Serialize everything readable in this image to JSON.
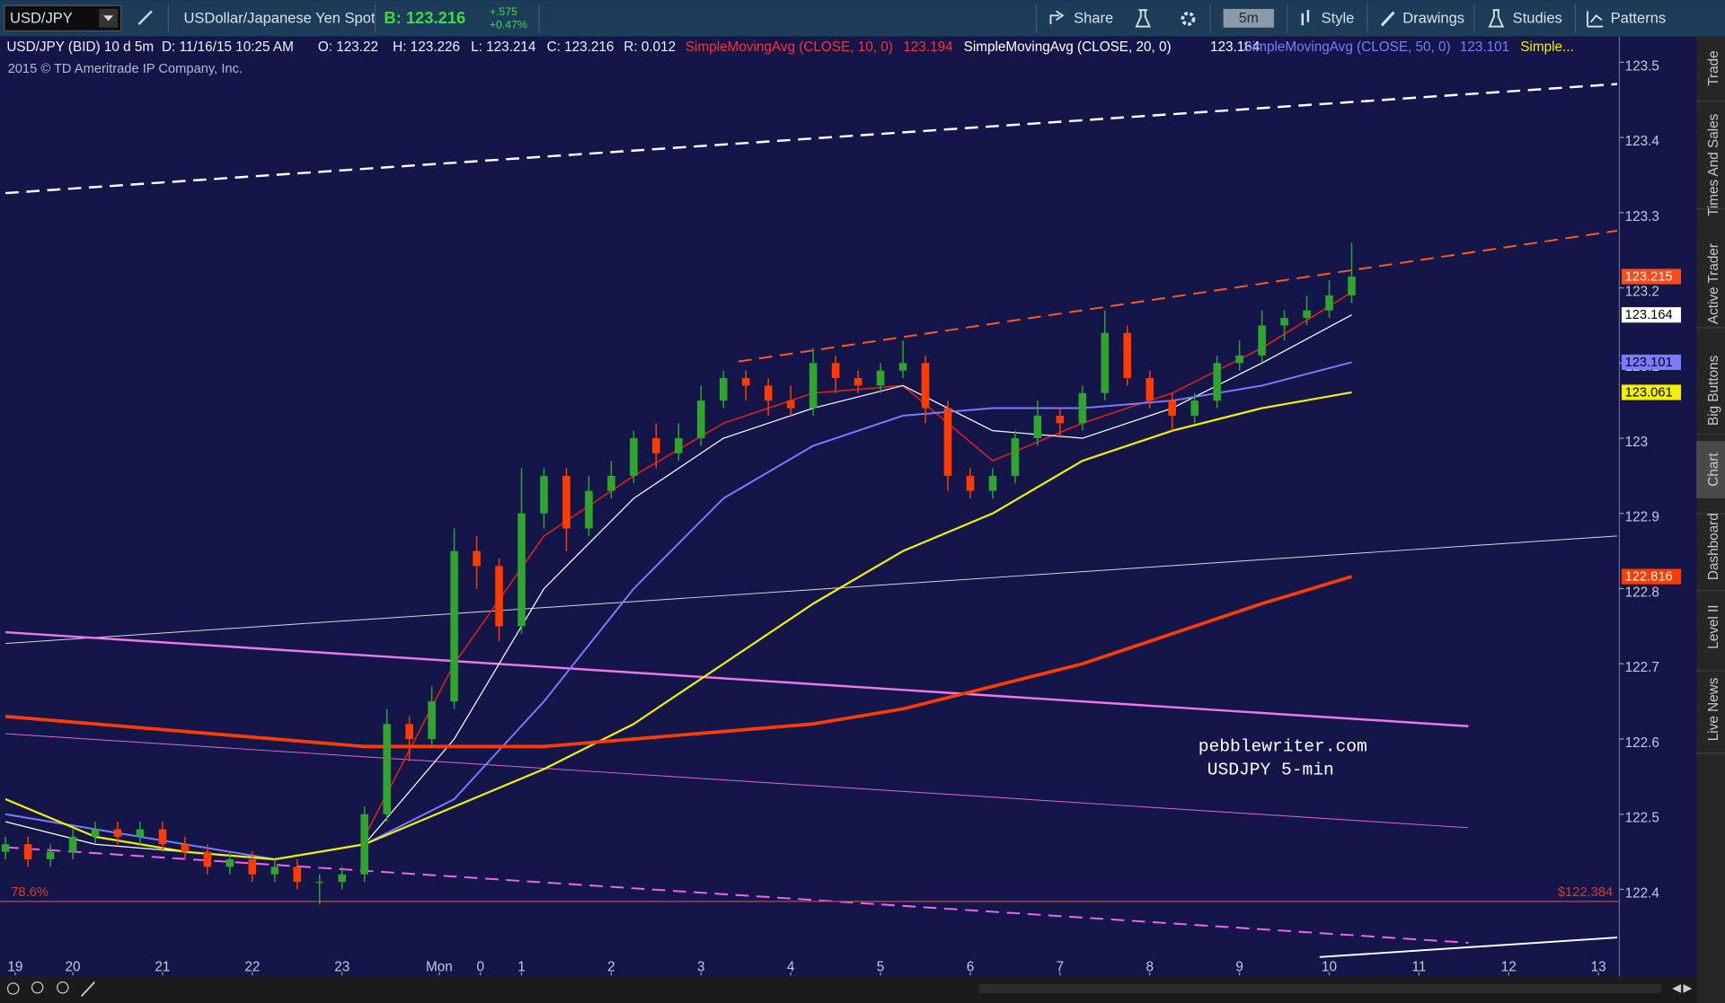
{
  "toolbar": {
    "symbol": "USD/JPY",
    "description": "USDollar/Japanese Yen Spot",
    "bid": "B: 123.216",
    "change": "+.575",
    "change_percent": "+0.47%",
    "buttons": [
      "Share",
      "5m",
      "Style",
      "Drawings",
      "Studies",
      "Patterns"
    ]
  },
  "info_bar": {
    "symbol": "USD/JPY (BID) 10 d 5m",
    "date": "D: 11/16/15 10:25 AM",
    "open": "O: 123.22",
    "high": "H: 123.226",
    "low": "L: 123.214",
    "close": "C: 123.216",
    "range": "R: 0.012",
    "copyright": "2015 © TD Ameritrade IP Company, Inc."
  },
  "sidebar": [
    "Trade",
    "Times And Sales",
    "Active Trader",
    "Big Buttons",
    "Chart",
    "Dashboard",
    "Level II",
    "Live News"
  ],
  "chart_data": {
    "type": "candlestick",
    "xlim": [
      0,
      215.5
    ],
    "ylim": [
      122.29,
      123.53
    ],
    "xticks": [
      {
        "value": 1.3,
        "label": "19"
      },
      {
        "value": 9,
        "label": "20"
      },
      {
        "value": 21,
        "label": "21"
      },
      {
        "value": 33,
        "label": "22"
      },
      {
        "value": 45,
        "label": "23"
      },
      {
        "value": 58,
        "label": "Mon"
      },
      {
        "value": 63.5,
        "label": "0"
      },
      {
        "value": 69,
        "label": "1"
      },
      {
        "value": 81,
        "label": "2"
      },
      {
        "value": 93,
        "label": "3"
      },
      {
        "value": 105,
        "label": "4"
      },
      {
        "value": 117,
        "label": "5"
      },
      {
        "value": 129,
        "label": "6"
      },
      {
        "value": 141,
        "label": "7"
      },
      {
        "value": 153,
        "label": "8"
      },
      {
        "value": 165,
        "label": "9"
      },
      {
        "value": 177,
        "label": "10"
      },
      {
        "value": 189,
        "label": "11"
      },
      {
        "value": 201,
        "label": "12"
      },
      {
        "value": 213,
        "label": "13"
      }
    ],
    "yticks": [
      122.4,
      122.5,
      122.6,
      122.7,
      122.8,
      122.9,
      123,
      123.1,
      123.2,
      123.3,
      123.4,
      123.5
    ],
    "grid": false,
    "up_color": "#2fa52f",
    "down_color": "#ff3c00",
    "x": [
      0,
      3,
      6,
      9,
      12,
      15,
      18,
      21,
      24,
      27,
      30,
      33,
      36,
      39,
      42,
      45,
      48,
      51,
      54,
      57,
      60,
      63,
      66,
      69,
      72,
      75,
      78,
      81,
      84,
      87,
      90,
      93,
      96,
      99,
      102,
      105,
      108,
      111,
      114,
      117,
      120,
      123,
      126,
      129,
      132,
      135,
      138,
      141,
      144,
      147,
      150,
      153,
      156,
      159,
      162,
      165,
      168,
      171,
      174,
      177,
      180
    ],
    "open": [
      122.45,
      122.46,
      122.44,
      122.45,
      122.47,
      122.48,
      122.47,
      122.48,
      122.46,
      122.45,
      122.43,
      122.44,
      122.42,
      122.43,
      122.41,
      122.41,
      122.42,
      122.5,
      122.62,
      122.6,
      122.65,
      122.85,
      122.83,
      122.75,
      122.9,
      122.95,
      122.88,
      122.93,
      122.95,
      123.0,
      122.98,
      123.0,
      123.05,
      123.08,
      123.07,
      123.05,
      123.04,
      123.1,
      123.08,
      123.07,
      123.09,
      123.1,
      123.04,
      122.95,
      122.93,
      122.95,
      123.0,
      123.03,
      123.02,
      123.06,
      123.14,
      123.08,
      123.05,
      123.03,
      123.05,
      123.1,
      123.11,
      123.15,
      123.16,
      123.17,
      123.19
    ],
    "high": [
      122.47,
      122.47,
      122.46,
      122.48,
      122.49,
      122.49,
      122.49,
      122.49,
      122.47,
      122.46,
      122.45,
      122.45,
      122.44,
      122.44,
      122.42,
      122.43,
      122.51,
      122.64,
      122.63,
      122.67,
      122.88,
      122.87,
      122.84,
      122.96,
      122.96,
      122.96,
      122.95,
      122.97,
      123.01,
      123.02,
      123.02,
      123.07,
      123.09,
      123.09,
      123.08,
      123.07,
      123.12,
      123.11,
      123.09,
      123.1,
      123.13,
      123.11,
      123.05,
      122.96,
      122.96,
      123.01,
      123.05,
      123.04,
      123.07,
      123.17,
      123.15,
      123.09,
      123.06,
      123.06,
      123.11,
      123.13,
      123.17,
      123.17,
      123.19,
      123.21,
      123.26
    ],
    "low": [
      122.44,
      122.43,
      122.43,
      122.44,
      122.46,
      122.46,
      122.46,
      122.45,
      122.44,
      122.42,
      122.42,
      122.41,
      122.41,
      122.4,
      122.38,
      122.4,
      122.41,
      122.49,
      122.57,
      122.59,
      122.64,
      122.8,
      122.73,
      122.74,
      122.88,
      122.85,
      122.87,
      122.92,
      122.94,
      122.96,
      122.97,
      122.99,
      123.04,
      123.05,
      123.03,
      123.03,
      123.03,
      123.06,
      123.06,
      123.06,
      123.08,
      123.02,
      122.93,
      122.92,
      122.92,
      122.94,
      122.99,
      123.0,
      123.01,
      123.05,
      123.07,
      123.04,
      123.01,
      123.02,
      123.04,
      123.09,
      123.1,
      123.13,
      123.15,
      123.16,
      123.18
    ],
    "close": [
      122.46,
      122.44,
      122.45,
      122.47,
      122.48,
      122.47,
      122.48,
      122.46,
      122.45,
      122.43,
      122.44,
      122.42,
      122.43,
      122.41,
      122.41,
      122.42,
      122.5,
      122.62,
      122.6,
      122.65,
      122.85,
      122.83,
      122.75,
      122.9,
      122.95,
      122.88,
      122.93,
      122.95,
      123.0,
      122.98,
      123.0,
      123.05,
      123.08,
      123.07,
      123.05,
      123.04,
      123.1,
      123.08,
      123.07,
      123.09,
      123.1,
      123.04,
      122.95,
      122.93,
      122.95,
      123.0,
      123.03,
      123.02,
      123.06,
      123.14,
      123.08,
      123.05,
      123.03,
      123.05,
      123.1,
      123.11,
      123.15,
      123.16,
      123.17,
      123.19,
      123.215
    ],
    "close_label": "123.215",
    "close_tag_color": "#ff4a1a",
    "series": [
      {
        "name": "SimpleMovingAvg (CLOSE, 10, 0)",
        "value_label": "123.194",
        "color": "#e0201a",
        "width": 1.3,
        "x": [
          48,
          60,
          72,
          84,
          96,
          108,
          120,
          132,
          144,
          156,
          168,
          180
        ],
        "values": [
          122.47,
          122.7,
          122.87,
          122.95,
          123.02,
          123.06,
          123.07,
          122.97,
          123.02,
          123.06,
          123.12,
          123.194
        ]
      },
      {
        "name": "SimpleMovingAvg (CLOSE, 20, 0)",
        "value_label": "123.164",
        "tag_label": "123.164",
        "color": "#ffffff",
        "width": 1,
        "x": [
          0,
          12,
          24,
          36,
          48,
          60,
          72,
          84,
          96,
          108,
          120,
          132,
          144,
          156,
          168,
          180
        ],
        "values": [
          122.49,
          122.46,
          122.45,
          122.44,
          122.46,
          122.6,
          122.8,
          122.92,
          123.0,
          123.04,
          123.07,
          123.01,
          123.0,
          123.04,
          123.1,
          123.164
        ]
      },
      {
        "name": "SimpleMovingAvg (CLOSE, 50, 0)",
        "value_label": "123.101",
        "tag_label": "123.101",
        "color": "#7b7bff",
        "width": 1.6,
        "x": [
          0,
          12,
          24,
          36,
          48,
          60,
          72,
          84,
          96,
          108,
          120,
          132,
          144,
          156,
          168,
          180
        ],
        "values": [
          122.5,
          122.48,
          122.46,
          122.44,
          122.46,
          122.52,
          122.65,
          122.8,
          122.92,
          122.99,
          123.03,
          123.04,
          123.04,
          123.05,
          123.07,
          123.101
        ]
      },
      {
        "name": "Simple...",
        "tag_label": "123.061",
        "color": "#f2f200",
        "width": 1.8,
        "x": [
          0,
          12,
          24,
          36,
          48,
          60,
          72,
          84,
          96,
          108,
          120,
          132,
          144,
          156,
          168,
          180
        ],
        "values": [
          122.52,
          122.47,
          122.45,
          122.44,
          122.46,
          122.51,
          122.56,
          122.62,
          122.7,
          122.78,
          122.85,
          122.9,
          122.97,
          123.01,
          123.04,
          123.061
        ]
      },
      {
        "tag_label": "122.816",
        "color": "#ff3c00",
        "width": 3,
        "x": [
          0,
          12,
          24,
          36,
          48,
          60,
          72,
          84,
          96,
          108,
          120,
          132,
          144,
          156,
          168,
          180
        ],
        "values": [
          122.63,
          122.62,
          122.61,
          122.6,
          122.59,
          122.59,
          122.59,
          122.6,
          122.61,
          122.62,
          122.64,
          122.67,
          122.7,
          122.74,
          122.78,
          122.816
        ]
      }
    ],
    "trendlines": [
      {
        "x": [
          0,
          215.5
        ],
        "values": [
          123.326,
          123.471
        ],
        "color": "#ffffff",
        "dash": true,
        "width": 2
      },
      {
        "x": [
          98,
          215.5
        ],
        "values": [
          123.102,
          123.276
        ],
        "color": "#ff5a1a",
        "dash": true,
        "width": 1.6
      },
      {
        "x": [
          0,
          215.5
        ],
        "values": [
          122.727,
          122.87
        ],
        "color": "#d8d8d8",
        "dash": false,
        "width": 0.8
      },
      {
        "x": [
          0,
          195.6
        ],
        "values": [
          122.742,
          122.617
        ],
        "color": "#ee77ee",
        "dash": false,
        "width": 2
      },
      {
        "x": [
          0,
          195.6
        ],
        "values": [
          122.607,
          122.482
        ],
        "color": "#dd66dd",
        "dash": false,
        "width": 0.8
      },
      {
        "x": [
          0,
          195.6
        ],
        "values": [
          122.456,
          122.329
        ],
        "color": "#ee66ee",
        "dash": true,
        "width": 1.6
      },
      {
        "x": [
          175.7,
          215.5
        ],
        "values": [
          122.31,
          122.336
        ],
        "color": "#ffffff",
        "dash": false,
        "width": 1.6
      }
    ],
    "level": {
      "value": 122.384,
      "label": "78.6%",
      "price_label": "$122.384",
      "color": "#d0402a"
    },
    "annotations": [
      "pebblewriter.com",
      "USDJPY 5-min"
    ]
  }
}
